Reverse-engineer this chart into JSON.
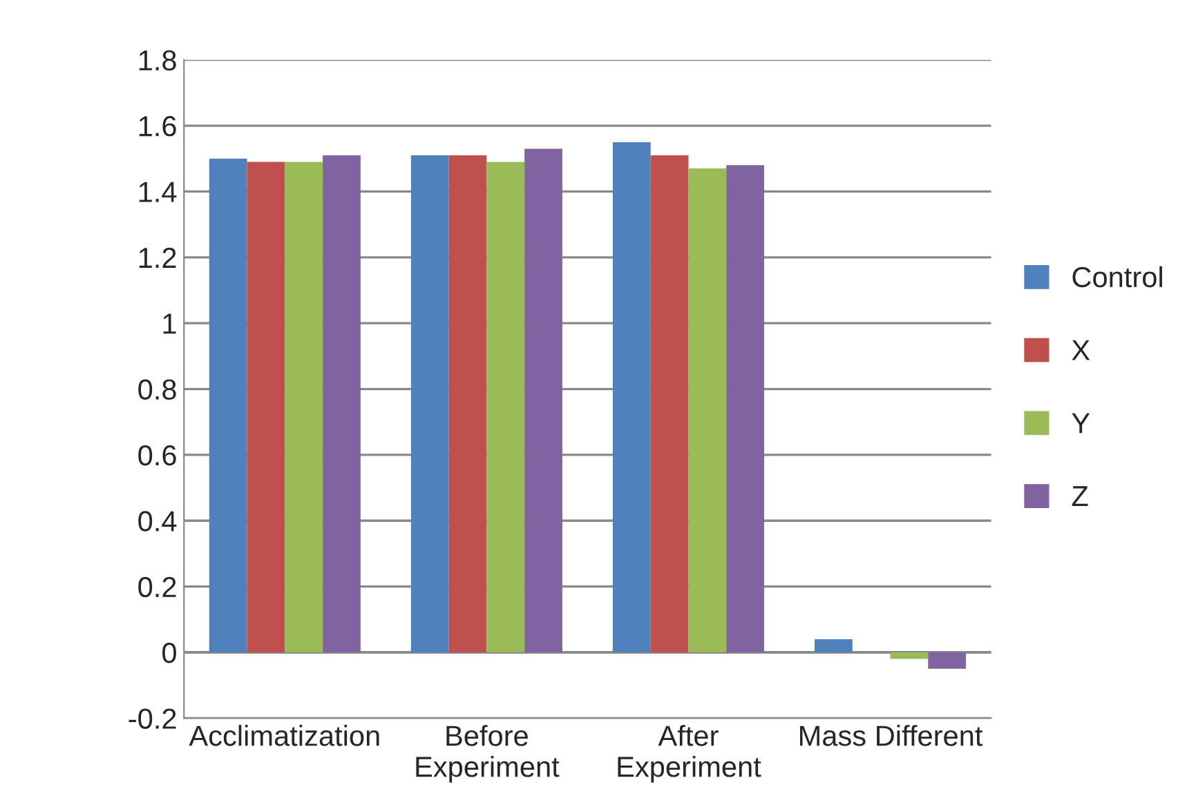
{
  "chart_data": {
    "type": "bar",
    "categories": [
      "Acclimatization",
      "Before\nExperiment",
      "After\nExperiment",
      "Mass Different"
    ],
    "series": [
      {
        "name": "Control",
        "color": "#4f81bd",
        "values": [
          1.5,
          1.51,
          1.55,
          0.04
        ]
      },
      {
        "name": "X",
        "color": "#c0504d",
        "values": [
          1.49,
          1.51,
          1.51,
          null
        ]
      },
      {
        "name": "Y",
        "color": "#9bbb59",
        "values": [
          1.49,
          1.49,
          1.47,
          -0.02
        ]
      },
      {
        "name": "Z",
        "color": "#8064a2",
        "values": [
          1.51,
          1.53,
          1.48,
          -0.05
        ]
      }
    ],
    "ylim": [
      -0.2,
      1.8
    ],
    "yticks": [
      -0.2,
      0,
      0.2,
      0.4,
      0.6,
      0.8,
      1,
      1.2,
      1.4,
      1.6,
      1.8
    ],
    "grid": "y",
    "legend": "right"
  }
}
